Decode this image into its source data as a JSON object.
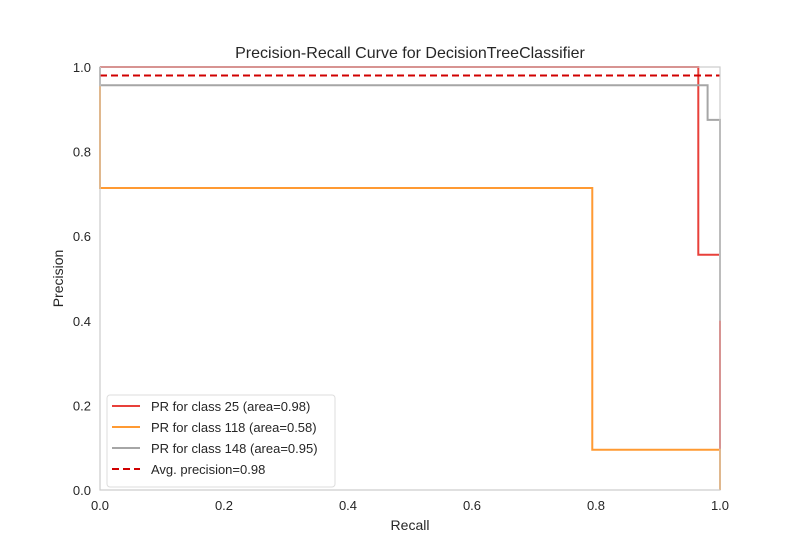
{
  "chart_data": {
    "type": "line",
    "title": "Precision-Recall Curve for DecisionTreeClassifier",
    "xlabel": "Recall",
    "ylabel": "Precision",
    "xlim": [
      0.0,
      1.0
    ],
    "ylim": [
      0.0,
      1.0
    ],
    "xticks": [
      "0.0",
      "0.2",
      "0.4",
      "0.6",
      "0.8",
      "1.0"
    ],
    "yticks": [
      "0.0",
      "0.2",
      "0.4",
      "0.6",
      "0.8",
      "1.0"
    ],
    "grid": false,
    "legend_position": "lower-left",
    "step": true,
    "series": [
      {
        "name": "PR for class 25 (area=0.98)",
        "color": "#e8403a",
        "dash": "solid",
        "x": [
          0.0,
          0.965,
          0.965,
          1.0,
          1.0
        ],
        "y": [
          1.0,
          1.0,
          0.556,
          0.556,
          0.0
        ]
      },
      {
        "name": "PR for class 118 (area=0.58)",
        "color": "#ff9a32",
        "dash": "solid",
        "x": [
          0.0,
          0.0,
          0.794,
          0.794,
          1.0,
          1.0
        ],
        "y": [
          1.0,
          0.714,
          0.714,
          0.095,
          0.095,
          0.0
        ]
      },
      {
        "name": "PR for class 148 (area=0.95)",
        "color": "#a6a6a6",
        "dash": "solid",
        "x": [
          0.0,
          0.0,
          0.98,
          0.98,
          1.0,
          1.0
        ],
        "y": [
          1.0,
          0.957,
          0.957,
          0.875,
          0.875,
          0.4
        ]
      },
      {
        "name": "Avg. precision=0.98",
        "color": "#d00000",
        "dash": "dashed",
        "x": [
          0.0,
          1.0
        ],
        "y": [
          0.98,
          0.98
        ]
      }
    ]
  }
}
